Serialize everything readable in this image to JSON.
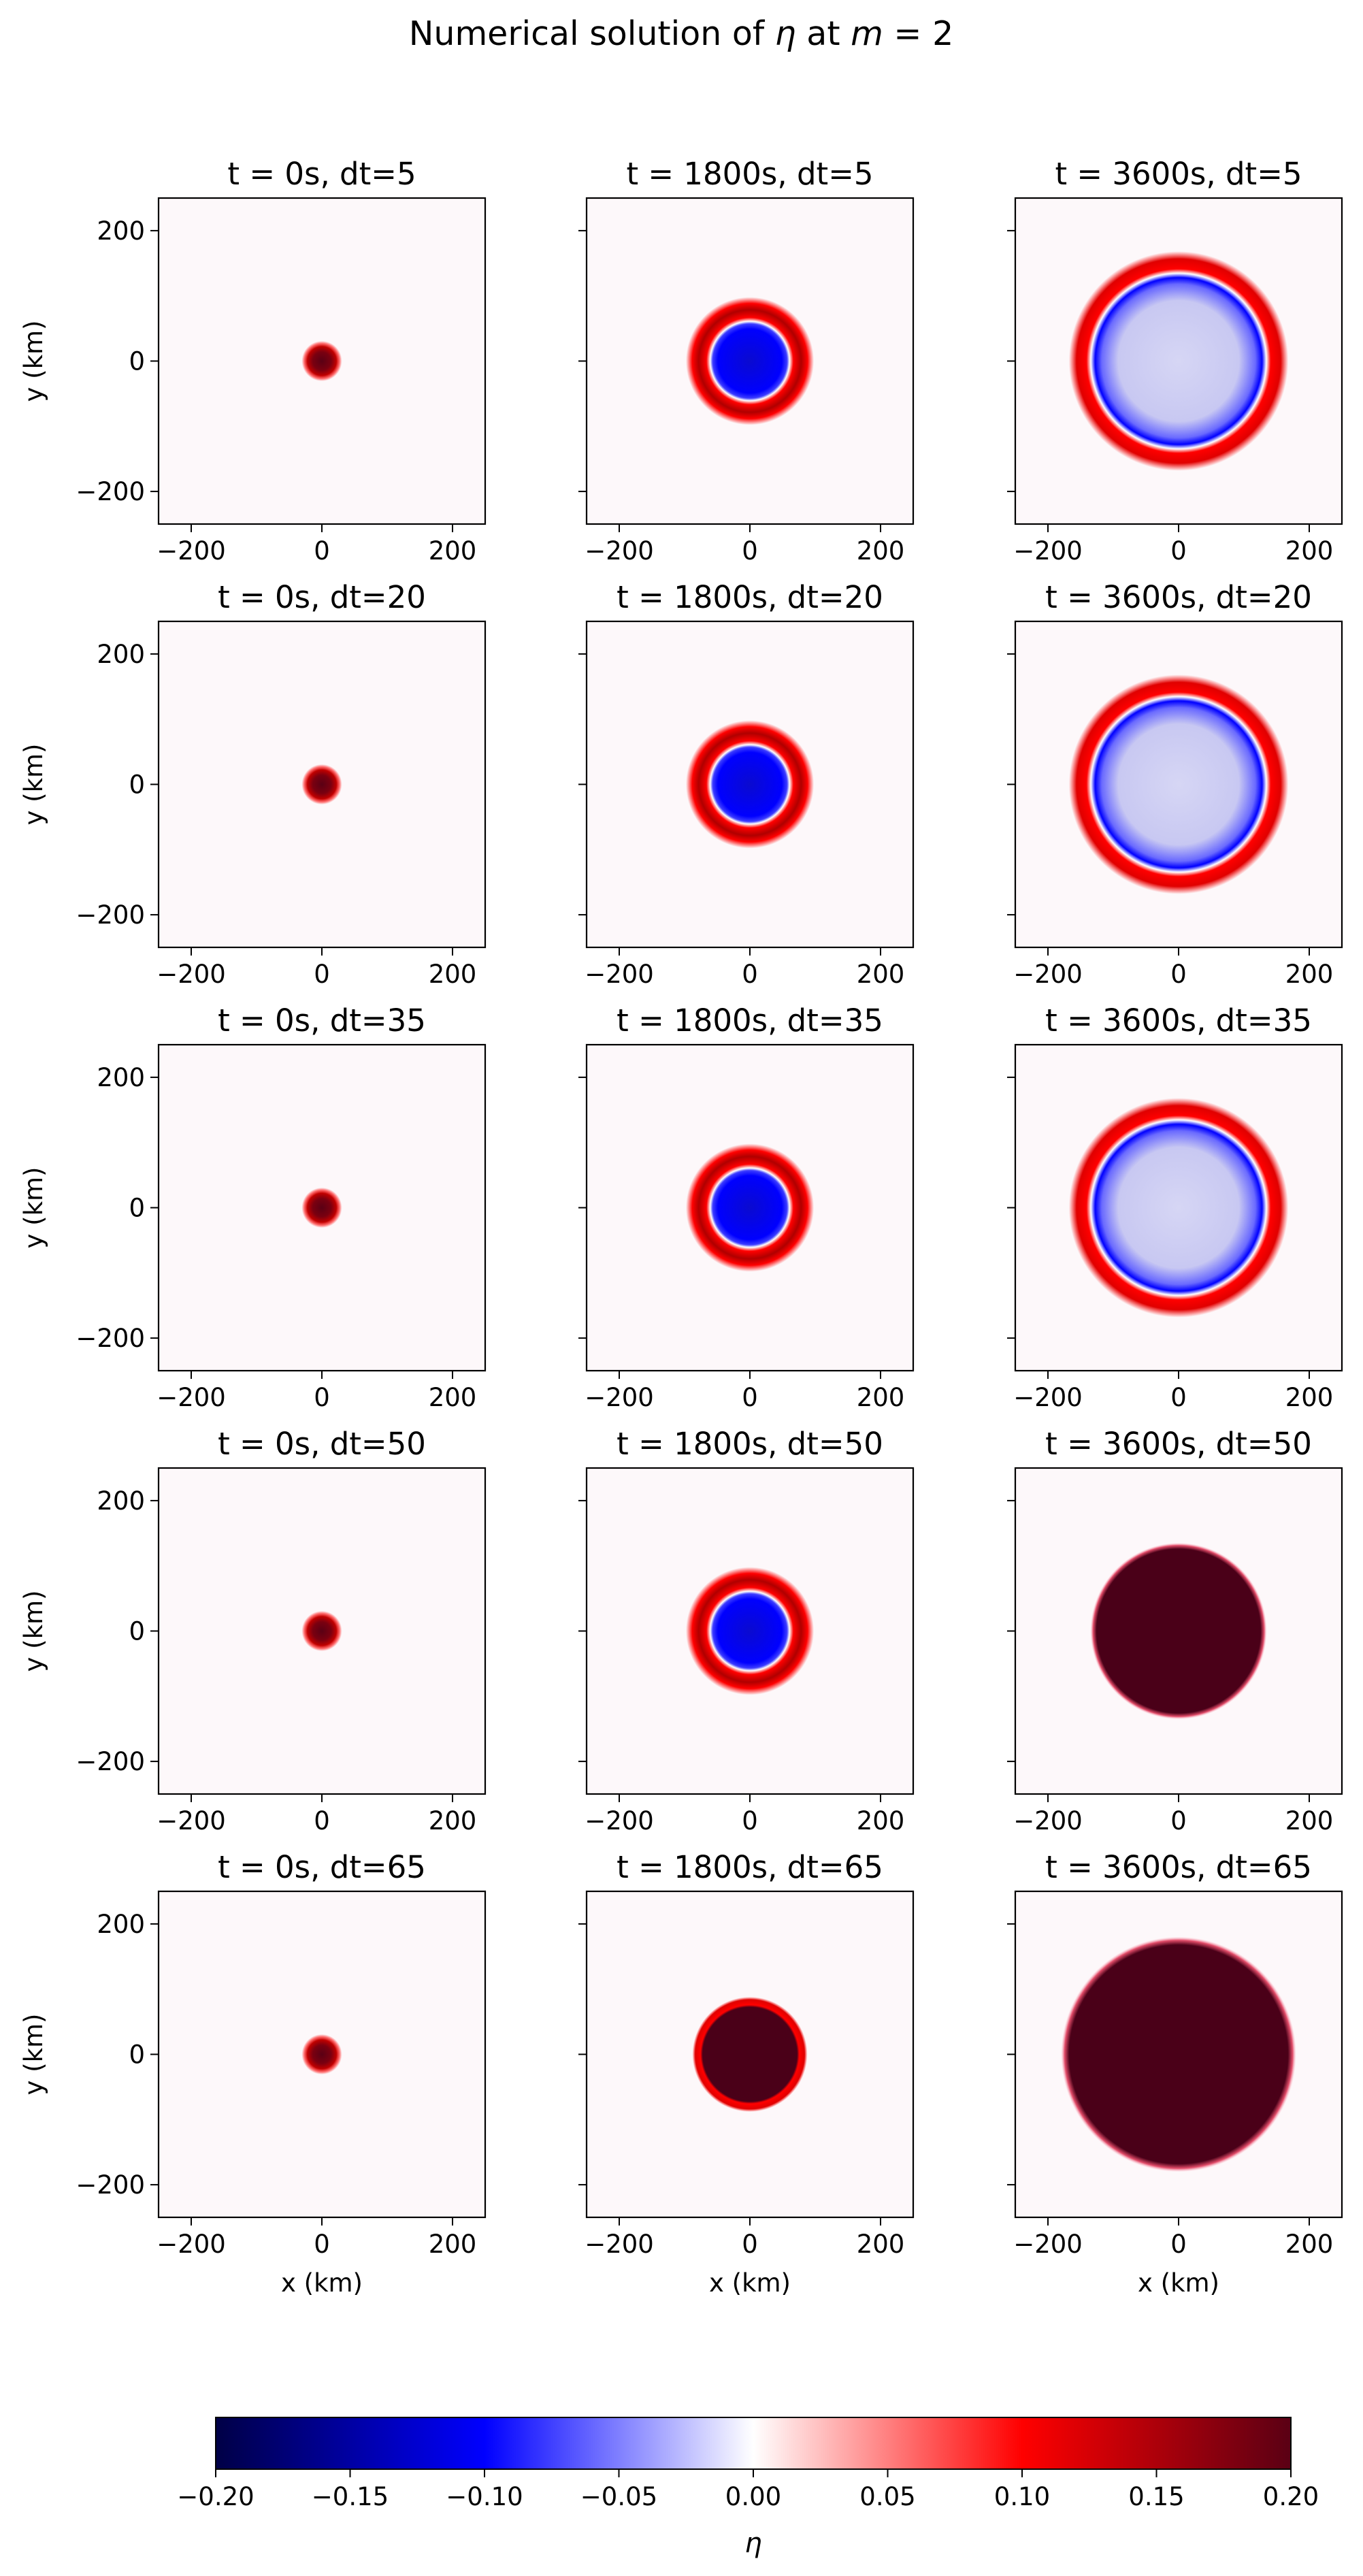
{
  "figure": {
    "title_prefix": "Numerical solution of ",
    "title_eta": "η",
    "title_mid": " at ",
    "title_m": "m",
    "title_suffix": " = 2"
  },
  "colors": {
    "neg_extreme": "#000046",
    "neg_strong": "#0000ff",
    "zero": "#ffffff",
    "pos_strong": "#ff0000",
    "pos_extreme": "#5a0014",
    "background_field": "#fdf8fa",
    "artifact": "#4a0018"
  },
  "chart_data": {
    "type": "heatmap",
    "colormap": "seismic",
    "rows": 5,
    "cols": 3,
    "xlabel": "x (km)",
    "ylabel": "y (km)",
    "xlim": [
      -250,
      250
    ],
    "ylim": [
      -250,
      250
    ],
    "xticks": [
      -200,
      0,
      200
    ],
    "yticks": [
      -200,
      0,
      200
    ],
    "xtick_labels": [
      "−200",
      "0",
      "200"
    ],
    "ytick_labels": [
      "−200",
      "0",
      "200"
    ],
    "colorbar": {
      "label": "η",
      "range": [
        -0.2,
        0.2
      ],
      "ticks": [
        -0.2,
        -0.15,
        -0.1,
        -0.05,
        0.0,
        0.05,
        0.1,
        0.15,
        0.2
      ],
      "tick_labels": [
        "−0.20",
        "−0.15",
        "−0.10",
        "−0.05",
        "0.00",
        "0.05",
        "0.10",
        "0.15",
        "0.20"
      ]
    },
    "panels": [
      {
        "title": "t = 0s, dt=5",
        "t": 0,
        "dt": 5,
        "pattern": "pulse",
        "radius_km": 28
      },
      {
        "title": "t = 1800s, dt=5",
        "t": 1800,
        "dt": 5,
        "pattern": "ring",
        "ring_radius_km": 68,
        "inner_radius_km": 42
      },
      {
        "title": "t = 3600s, dt=5",
        "t": 3600,
        "dt": 5,
        "pattern": "ring",
        "ring_radius_km": 138,
        "inner_radius_km": 110
      },
      {
        "title": "t = 0s, dt=20",
        "t": 0,
        "dt": 20,
        "pattern": "pulse",
        "radius_km": 28
      },
      {
        "title": "t = 1800s, dt=20",
        "t": 1800,
        "dt": 20,
        "pattern": "ring",
        "ring_radius_km": 68,
        "inner_radius_km": 42
      },
      {
        "title": "t = 3600s, dt=20",
        "t": 3600,
        "dt": 20,
        "pattern": "ring",
        "ring_radius_km": 138,
        "inner_radius_km": 110
      },
      {
        "title": "t = 0s, dt=35",
        "t": 0,
        "dt": 35,
        "pattern": "pulse",
        "radius_km": 28
      },
      {
        "title": "t = 1800s, dt=35",
        "t": 1800,
        "dt": 35,
        "pattern": "ring",
        "ring_radius_km": 68,
        "inner_radius_km": 42
      },
      {
        "title": "t = 3600s, dt=35",
        "t": 3600,
        "dt": 35,
        "pattern": "ring",
        "ring_radius_km": 138,
        "inner_radius_km": 110
      },
      {
        "title": "t = 0s, dt=50",
        "t": 0,
        "dt": 50,
        "pattern": "pulse",
        "radius_km": 28
      },
      {
        "title": "t = 1800s, dt=50",
        "t": 1800,
        "dt": 50,
        "pattern": "ring",
        "ring_radius_km": 68,
        "inner_radius_km": 42
      },
      {
        "title": "t = 3600s, dt=50",
        "t": 3600,
        "dt": 50,
        "pattern": "unstable",
        "radius_km": 135
      },
      {
        "title": "t = 0s, dt=65",
        "t": 0,
        "dt": 65,
        "pattern": "pulse",
        "radius_km": 28
      },
      {
        "title": "t = 1800s, dt=65",
        "t": 1800,
        "dt": 65,
        "pattern": "unstable_ring",
        "radius_km": 65,
        "ring_radius_km": 68
      },
      {
        "title": "t = 3600s, dt=65",
        "t": 3600,
        "dt": 65,
        "pattern": "unstable",
        "radius_km": 180
      }
    ]
  }
}
